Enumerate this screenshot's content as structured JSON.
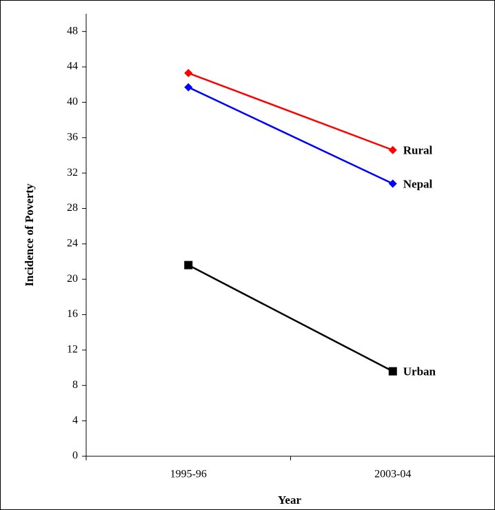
{
  "chart_data": {
    "type": "line",
    "x_label": "Year",
    "y_label": "Incidence of Poverty",
    "categories": [
      "1995-96",
      "2003-04"
    ],
    "series": [
      {
        "name": "Rural",
        "color": "#ff0000",
        "marker": "diamond",
        "values": [
          43.3,
          34.6
        ]
      },
      {
        "name": "Nepal",
        "color": "#0000ff",
        "marker": "diamond",
        "values": [
          41.7,
          30.8
        ]
      },
      {
        "name": "Urban",
        "color": "#000000",
        "marker": "square",
        "values": [
          21.6,
          9.6
        ]
      }
    ],
    "ylim": [
      0,
      50
    ],
    "yticks": [
      0,
      4,
      8,
      12,
      16,
      20,
      24,
      28,
      32,
      36,
      40,
      44,
      48
    ],
    "grid": false,
    "legend": "line-end"
  }
}
